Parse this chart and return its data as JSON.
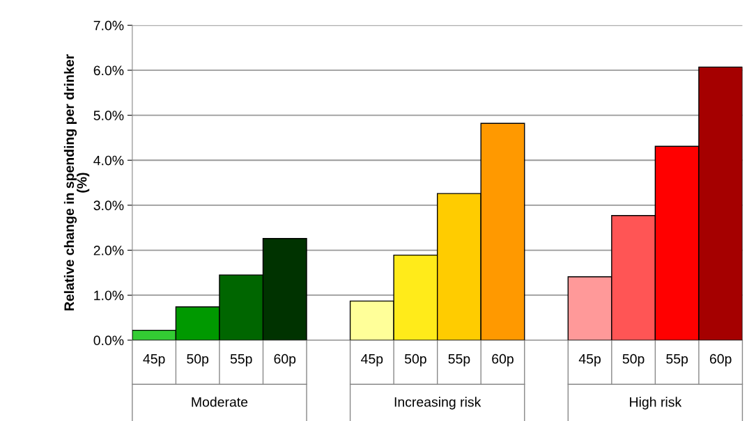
{
  "chart_data": {
    "type": "bar",
    "ylabel": "Relative change in spending per drinker (%)",
    "categories": [
      "45p",
      "50p",
      "55p",
      "60p",
      null,
      "45p",
      "50p",
      "55p",
      "60p",
      null,
      "45p",
      "50p",
      "55p",
      "60p"
    ],
    "values": [
      0.22,
      0.74,
      1.45,
      2.26,
      null,
      0.87,
      1.89,
      3.26,
      4.82,
      null,
      1.41,
      2.77,
      4.31,
      6.07
    ],
    "colors": [
      "#33cc33",
      "#009900",
      "#006600",
      "#003300",
      "#ffffff",
      "#ffff99",
      "#ffeb1a",
      "#ffcc00",
      "#ff9900",
      "#ffffff",
      "#ff9999",
      "#ff5555",
      "#ff0000",
      "#a50000"
    ],
    "annotations": [
      "Moderate",
      "Increasing risk",
      "High risk"
    ],
    "ylim": [
      0,
      7
    ],
    "yticks": [
      {
        "value": 0,
        "label": "0.0%"
      },
      {
        "value": 1,
        "label": "1.0%"
      },
      {
        "value": 2,
        "label": "2.0%"
      },
      {
        "value": 3,
        "label": "3.0%"
      },
      {
        "value": 4,
        "label": "4.0%"
      },
      {
        "value": 5,
        "label": "5.0%"
      },
      {
        "value": 6,
        "label": "6.0%"
      },
      {
        "value": 7,
        "label": "7.0%"
      }
    ],
    "grid": "y",
    "legend": false
  }
}
